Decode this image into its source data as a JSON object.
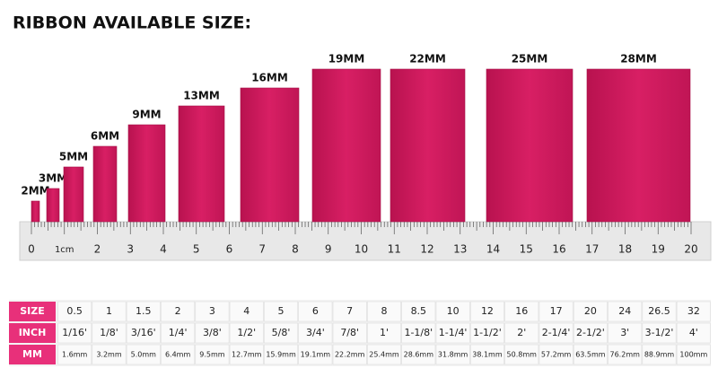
{
  "title": "RIBBON AVAILABLE SIZE:",
  "ribbons": [
    {
      "label": "2MM"
    },
    {
      "label": "3MM"
    },
    {
      "label": "5MM"
    },
    {
      "label": "6MM"
    },
    {
      "label": "9MM"
    },
    {
      "label": "13MM"
    },
    {
      "label": "16MM"
    },
    {
      "label": "19MM"
    },
    {
      "label": "22MM"
    },
    {
      "label": "25MM"
    },
    {
      "label": "28MM"
    }
  ],
  "ruler": {
    "labels": [
      "0",
      "1cm",
      "2",
      "3",
      "4",
      "5",
      "6",
      "7",
      "8",
      "9",
      "10",
      "11",
      "12",
      "13",
      "14",
      "15",
      "16",
      "17",
      "18",
      "19",
      "20"
    ]
  },
  "table": {
    "rows": [
      {
        "header": "SIZE",
        "cells": [
          "0.5",
          "1",
          "1.5",
          "2",
          "3",
          "4",
          "5",
          "6",
          "7",
          "8",
          "8.5",
          "10",
          "12",
          "16",
          "17",
          "20",
          "24",
          "26.5",
          "32"
        ]
      },
      {
        "header": "INCH",
        "cells": [
          "1/16'",
          "1/8'",
          "3/16'",
          "1/4'",
          "3/8'",
          "1/2'",
          "5/8'",
          "3/4'",
          "7/8'",
          "1'",
          "1-1/8'",
          "1-1/4'",
          "1-1/2'",
          "2'",
          "2-1/4'",
          "2-1/2'",
          "3'",
          "3-1/2'",
          "4'"
        ]
      },
      {
        "header": "MM",
        "cells": [
          "1.6mm",
          "3.2mm",
          "5.0mm",
          "6.4mm",
          "9.5mm",
          "12.7mm",
          "15.9mm",
          "19.1mm",
          "22.2mm",
          "25.4mm",
          "28.6mm",
          "31.8mm",
          "38.1mm",
          "50.8mm",
          "57.2mm",
          "63.5mm",
          "76.2mm",
          "88.9mm",
          "100mm"
        ]
      }
    ]
  }
}
